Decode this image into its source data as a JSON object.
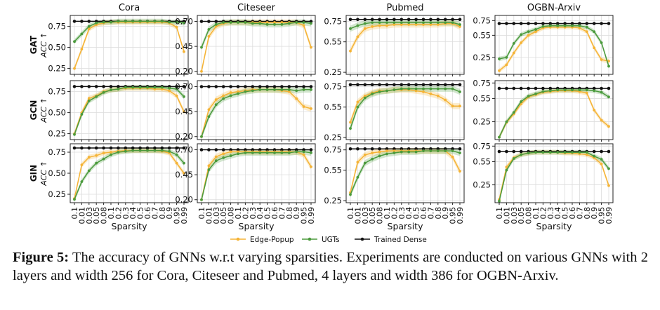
{
  "figure": {
    "columns": [
      "Cora",
      "Citeseer",
      "Pubmed",
      "OGBN-Arxiv"
    ],
    "rows": [
      "GAT",
      "GCN",
      "GIN"
    ],
    "row_axis_label": "ACC ↑",
    "x_label": "Sparsity",
    "x_ticks": [
      "0.1",
      "0.01",
      "0.03",
      "0.05",
      "0.08",
      "0.1",
      "0.2",
      "0.3",
      "0.4",
      "0.5",
      "0.6",
      "0.7",
      "0.8",
      "0.9",
      "0.95",
      "0.99"
    ],
    "legend": [
      {
        "key": "ep",
        "label": "Edge-Popup",
        "color": "#f5b335"
      },
      {
        "key": "ugt",
        "label": "UGTs",
        "color": "#4a9a3c"
      },
      {
        "key": "dense",
        "label": "Trained Dense",
        "color": "#111111"
      }
    ]
  },
  "caption": {
    "prefix": "Figure 5:",
    "text": " The accuracy of GNNs w.r.t varying sparsities. Experiments are conducted on various GNNs with 2 layers and width 256 for Cora, Citeseer and Pubmed, 4 layers and width 386 for OGBN-Arxiv."
  },
  "chart_data": {
    "type": "line",
    "x": [
      "0.1",
      "0.01",
      "0.03",
      "0.05",
      "0.08",
      "0.1",
      "0.2",
      "0.3",
      "0.4",
      "0.5",
      "0.6",
      "0.7",
      "0.8",
      "0.9",
      "0.95",
      "0.99"
    ],
    "xlabel": "Sparsity",
    "ylabel": "ACC ↑",
    "panels": [
      {
        "row": "GAT",
        "col": "Cora",
        "ylim": [
          0.18,
          0.88
        ],
        "yticks": [
          0.25,
          0.5,
          0.75
        ],
        "ytick_labels": [
          "0.25",
          "0.50",
          "0.75"
        ],
        "ep": [
          0.25,
          0.48,
          0.72,
          0.77,
          0.79,
          0.8,
          0.8,
          0.8,
          0.8,
          0.8,
          0.8,
          0.8,
          0.8,
          0.79,
          0.74,
          0.45
        ],
        "ugt": [
          0.57,
          0.66,
          0.75,
          0.79,
          0.8,
          0.8,
          0.81,
          0.81,
          0.81,
          0.81,
          0.81,
          0.81,
          0.81,
          0.8,
          0.8,
          0.79
        ],
        "dense": [
          0.81,
          0.81,
          0.81,
          0.81,
          0.81,
          0.81,
          0.81,
          0.81,
          0.81,
          0.81,
          0.81,
          0.81,
          0.81,
          0.81,
          0.81,
          0.81
        ]
      },
      {
        "row": "GAT",
        "col": "Citeseer",
        "ylim": [
          0.17,
          0.76
        ],
        "yticks": [
          0.2,
          0.45,
          0.7
        ],
        "ytick_labels": [
          "0.20",
          "0.45",
          "0.70"
        ],
        "ep": [
          0.2,
          0.55,
          0.65,
          0.68,
          0.69,
          0.69,
          0.69,
          0.69,
          0.69,
          0.69,
          0.69,
          0.69,
          0.69,
          0.69,
          0.66,
          0.44
        ],
        "ugt": [
          0.44,
          0.62,
          0.67,
          0.69,
          0.69,
          0.69,
          0.69,
          0.68,
          0.68,
          0.67,
          0.67,
          0.67,
          0.68,
          0.69,
          0.69,
          0.68
        ],
        "dense": [
          0.7,
          0.7,
          0.7,
          0.7,
          0.7,
          0.7,
          0.7,
          0.7,
          0.7,
          0.7,
          0.7,
          0.7,
          0.7,
          0.7,
          0.7,
          0.7
        ]
      },
      {
        "row": "GAT",
        "col": "Pubmed",
        "ylim": [
          0.23,
          0.81
        ],
        "yticks": [
          0.25,
          0.55,
          0.75
        ],
        "ytick_labels": [
          "0.25",
          "0.55",
          "0.75"
        ],
        "ep": [
          0.46,
          0.6,
          0.68,
          0.7,
          0.71,
          0.71,
          0.72,
          0.72,
          0.72,
          0.72,
          0.72,
          0.72,
          0.72,
          0.73,
          0.73,
          0.7
        ],
        "ugt": [
          0.68,
          0.71,
          0.73,
          0.74,
          0.74,
          0.74,
          0.74,
          0.74,
          0.74,
          0.74,
          0.74,
          0.74,
          0.74,
          0.74,
          0.74,
          0.72
        ],
        "dense": [
          0.77,
          0.77,
          0.77,
          0.77,
          0.77,
          0.77,
          0.77,
          0.77,
          0.77,
          0.77,
          0.77,
          0.77,
          0.77,
          0.77,
          0.77,
          0.77
        ]
      },
      {
        "row": "GAT",
        "col": "OGBN-Arxiv",
        "ylim": [
          0.02,
          0.82
        ],
        "yticks": [
          0.25,
          0.55,
          0.75
        ],
        "ytick_labels": [
          "0.25",
          "0.55",
          "0.75"
        ],
        "ep": [
          0.07,
          0.15,
          0.31,
          0.45,
          0.55,
          0.6,
          0.65,
          0.66,
          0.66,
          0.66,
          0.66,
          0.65,
          0.6,
          0.38,
          0.22,
          0.2
        ],
        "ugt": [
          0.23,
          0.25,
          0.44,
          0.56,
          0.6,
          0.63,
          0.67,
          0.68,
          0.68,
          0.68,
          0.68,
          0.68,
          0.66,
          0.6,
          0.45,
          0.13
        ],
        "dense": [
          0.71,
          0.71,
          0.71,
          0.71,
          0.71,
          0.71,
          0.71,
          0.71,
          0.71,
          0.71,
          0.71,
          0.71,
          0.71,
          0.71,
          0.71,
          0.71
        ]
      },
      {
        "row": "GCN",
        "col": "Cora",
        "ylim": [
          0.18,
          0.88
        ],
        "yticks": [
          0.25,
          0.5,
          0.75
        ],
        "ytick_labels": [
          "0.25",
          "0.50",
          "0.75"
        ],
        "ep": [
          0.25,
          0.5,
          0.67,
          0.7,
          0.75,
          0.77,
          0.78,
          0.79,
          0.79,
          0.79,
          0.79,
          0.78,
          0.78,
          0.76,
          0.7,
          0.51
        ],
        "ugt": [
          0.24,
          0.48,
          0.64,
          0.69,
          0.74,
          0.77,
          0.78,
          0.8,
          0.8,
          0.8,
          0.8,
          0.8,
          0.8,
          0.79,
          0.78,
          0.69
        ],
        "dense": [
          0.81,
          0.81,
          0.81,
          0.81,
          0.81,
          0.81,
          0.81,
          0.81,
          0.81,
          0.81,
          0.81,
          0.81,
          0.81,
          0.81,
          0.81,
          0.81
        ]
      },
      {
        "row": "GCN",
        "col": "Citeseer",
        "ylim": [
          0.17,
          0.76
        ],
        "yticks": [
          0.2,
          0.45,
          0.7
        ],
        "ytick_labels": [
          "0.20",
          "0.45",
          "0.70"
        ],
        "ep": [
          0.2,
          0.47,
          0.57,
          0.61,
          0.64,
          0.65,
          0.66,
          0.67,
          0.67,
          0.67,
          0.67,
          0.66,
          0.65,
          0.58,
          0.5,
          0.48
        ],
        "ugt": [
          0.2,
          0.4,
          0.52,
          0.58,
          0.61,
          0.63,
          0.65,
          0.66,
          0.67,
          0.67,
          0.67,
          0.67,
          0.67,
          0.66,
          0.67,
          0.67
        ],
        "dense": [
          0.7,
          0.7,
          0.7,
          0.7,
          0.7,
          0.7,
          0.7,
          0.7,
          0.7,
          0.7,
          0.7,
          0.7,
          0.7,
          0.7,
          0.7,
          0.7
        ]
      },
      {
        "row": "GCN",
        "col": "Pubmed",
        "ylim": [
          0.23,
          0.81
        ],
        "yticks": [
          0.25,
          0.55,
          0.75
        ],
        "ytick_labels": [
          "0.25",
          "0.55",
          "0.75"
        ],
        "ep": [
          0.4,
          0.6,
          0.66,
          0.69,
          0.71,
          0.71,
          0.72,
          0.72,
          0.72,
          0.71,
          0.7,
          0.68,
          0.66,
          0.62,
          0.56,
          0.56
        ],
        "ugt": [
          0.34,
          0.55,
          0.64,
          0.68,
          0.7,
          0.71,
          0.72,
          0.73,
          0.73,
          0.73,
          0.73,
          0.73,
          0.73,
          0.73,
          0.73,
          0.7
        ],
        "dense": [
          0.77,
          0.77,
          0.77,
          0.77,
          0.77,
          0.77,
          0.77,
          0.77,
          0.77,
          0.77,
          0.77,
          0.77,
          0.77,
          0.77,
          0.77,
          0.77
        ]
      },
      {
        "row": "GCN",
        "col": "OGBN-Arxiv",
        "ylim": [
          0.02,
          0.78
        ],
        "yticks": [
          0.25,
          0.55,
          0.75
        ],
        "ytick_labels": [
          "0.25",
          "0.55",
          "0.75"
        ],
        "ep": [
          0.05,
          0.24,
          0.35,
          0.48,
          0.57,
          0.6,
          0.63,
          0.64,
          0.65,
          0.65,
          0.65,
          0.64,
          0.62,
          0.4,
          0.27,
          0.19
        ],
        "ugt": [
          0.05,
          0.25,
          0.37,
          0.51,
          0.58,
          0.61,
          0.64,
          0.65,
          0.66,
          0.66,
          0.66,
          0.66,
          0.66,
          0.65,
          0.63,
          0.57
        ],
        "dense": [
          0.68,
          0.68,
          0.68,
          0.68,
          0.68,
          0.68,
          0.68,
          0.68,
          0.68,
          0.68,
          0.68,
          0.68,
          0.68,
          0.68,
          0.68,
          0.68
        ]
      },
      {
        "row": "GIN",
        "col": "Cora",
        "ylim": [
          0.15,
          0.85
        ],
        "yticks": [
          0.25,
          0.5,
          0.75
        ],
        "ytick_labels": [
          "0.25",
          "0.50",
          "0.75"
        ],
        "ep": [
          0.2,
          0.6,
          0.69,
          0.71,
          0.74,
          0.75,
          0.76,
          0.77,
          0.77,
          0.77,
          0.77,
          0.77,
          0.76,
          0.74,
          0.62,
          0.5
        ],
        "ugt": [
          0.19,
          0.4,
          0.53,
          0.62,
          0.67,
          0.72,
          0.75,
          0.76,
          0.77,
          0.77,
          0.77,
          0.77,
          0.77,
          0.76,
          0.72,
          0.62
        ],
        "dense": [
          0.8,
          0.8,
          0.8,
          0.8,
          0.8,
          0.8,
          0.8,
          0.8,
          0.8,
          0.8,
          0.8,
          0.8,
          0.8,
          0.8,
          0.8,
          0.8
        ]
      },
      {
        "row": "GIN",
        "col": "Citeseer",
        "ylim": [
          0.17,
          0.76
        ],
        "yticks": [
          0.2,
          0.45,
          0.7
        ],
        "ytick_labels": [
          "0.20",
          "0.45",
          "0.70"
        ],
        "ep": [
          0.2,
          0.54,
          0.63,
          0.66,
          0.68,
          0.68,
          0.68,
          0.68,
          0.68,
          0.68,
          0.68,
          0.68,
          0.68,
          0.68,
          0.65,
          0.53
        ],
        "ugt": [
          0.2,
          0.5,
          0.59,
          0.62,
          0.64,
          0.66,
          0.67,
          0.67,
          0.67,
          0.67,
          0.67,
          0.67,
          0.67,
          0.68,
          0.68,
          0.67
        ],
        "dense": [
          0.7,
          0.7,
          0.7,
          0.7,
          0.7,
          0.7,
          0.7,
          0.7,
          0.7,
          0.7,
          0.7,
          0.7,
          0.7,
          0.7,
          0.7,
          0.7
        ]
      },
      {
        "row": "GIN",
        "col": "Pubmed",
        "ylim": [
          0.23,
          0.81
        ],
        "yticks": [
          0.25,
          0.55,
          0.75
        ],
        "ytick_labels": [
          "0.25",
          "0.55",
          "0.75"
        ],
        "ep": [
          0.33,
          0.63,
          0.7,
          0.72,
          0.73,
          0.74,
          0.74,
          0.74,
          0.74,
          0.74,
          0.74,
          0.74,
          0.74,
          0.74,
          0.68,
          0.54
        ],
        "ugt": [
          0.31,
          0.48,
          0.62,
          0.66,
          0.69,
          0.71,
          0.72,
          0.73,
          0.73,
          0.73,
          0.74,
          0.74,
          0.74,
          0.74,
          0.74,
          0.72
        ],
        "dense": [
          0.76,
          0.76,
          0.76,
          0.76,
          0.76,
          0.76,
          0.76,
          0.76,
          0.76,
          0.76,
          0.76,
          0.76,
          0.76,
          0.76,
          0.76,
          0.76
        ]
      },
      {
        "row": "GIN",
        "col": "OGBN-Arxiv",
        "ylim": [
          0.02,
          0.78
        ],
        "yticks": [
          0.25,
          0.55,
          0.75
        ],
        "ytick_labels": [
          "0.25",
          "0.55",
          "0.75"
        ],
        "ep": [
          0.06,
          0.48,
          0.6,
          0.64,
          0.66,
          0.67,
          0.67,
          0.67,
          0.67,
          0.66,
          0.66,
          0.65,
          0.64,
          0.6,
          0.52,
          0.24
        ],
        "ugt": [
          0.04,
          0.44,
          0.59,
          0.64,
          0.66,
          0.67,
          0.67,
          0.67,
          0.67,
          0.67,
          0.67,
          0.67,
          0.67,
          0.62,
          0.58,
          0.46
        ],
        "dense": [
          0.68,
          0.68,
          0.68,
          0.68,
          0.68,
          0.68,
          0.68,
          0.68,
          0.68,
          0.68,
          0.68,
          0.68,
          0.68,
          0.68,
          0.68,
          0.68
        ]
      }
    ]
  }
}
